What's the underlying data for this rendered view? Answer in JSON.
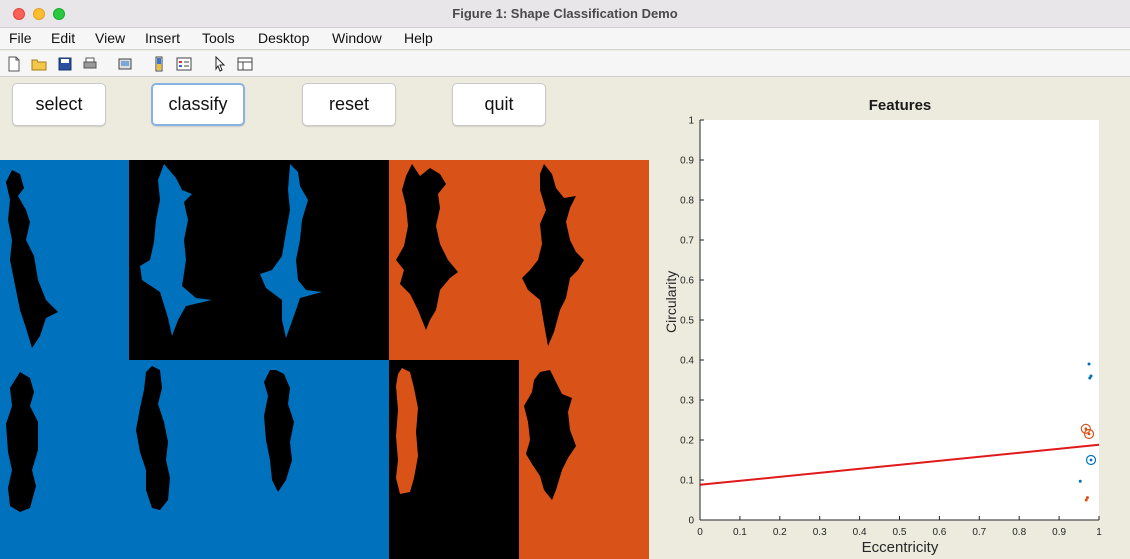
{
  "window": {
    "title": "Figure 1: Shape Classification Demo"
  },
  "menu": [
    "File",
    "Edit",
    "View",
    "Insert",
    "Tools",
    "Desktop",
    "Window",
    "Help"
  ],
  "toolbar_icons": [
    "new-file-icon",
    "open-folder-icon",
    "save-icon",
    "print-icon",
    "export-icon",
    "colorbar-icon",
    "legend-icon",
    "pointer-icon",
    "property-inspector-icon"
  ],
  "buttons": {
    "select": "select",
    "classify": "classify",
    "reset": "reset",
    "quit": "quit"
  },
  "colors": {
    "blue": "#0072bd",
    "orange": "#d95319",
    "black": "#000000",
    "line": "#e0191b"
  },
  "image_grid": {
    "tiles": [
      {
        "row": 1,
        "col": 1,
        "background": "blue",
        "shape": "fish",
        "fill": "black"
      },
      {
        "row": 1,
        "col": 2,
        "background": "black",
        "shape": "fish",
        "fill": "blue"
      },
      {
        "row": 1,
        "col": 3,
        "background": "black",
        "shape": "fish",
        "fill": "blue"
      },
      {
        "row": 1,
        "col": 4,
        "background": "orange",
        "shape": "fish",
        "fill": "black"
      },
      {
        "row": 1,
        "col": 5,
        "background": "orange",
        "shape": "fish",
        "fill": "black"
      },
      {
        "row": 2,
        "col": 1,
        "background": "blue",
        "shape": "fish",
        "fill": "black"
      },
      {
        "row": 2,
        "col": 2,
        "background": "blue",
        "shape": "fish",
        "fill": "black"
      },
      {
        "row": 2,
        "col": 3,
        "background": "blue",
        "shape": "fish",
        "fill": "black"
      },
      {
        "row": 2,
        "col": 4,
        "background": "black",
        "shape": "fish",
        "fill": "orange"
      },
      {
        "row": 2,
        "col": 5,
        "background": "orange",
        "shape": "fish",
        "fill": "black"
      }
    ]
  },
  "chart_data": {
    "type": "scatter",
    "title": "Features",
    "xlabel": "Eccentricity",
    "ylabel": "Circularity",
    "xlim": [
      0,
      1
    ],
    "ylim": [
      0,
      1
    ],
    "xticks": [
      "0",
      "0.1",
      "0.2",
      "0.3",
      "0.4",
      "0.5",
      "0.6",
      "0.7",
      "0.8",
      "0.9",
      "1"
    ],
    "yticks": [
      "0",
      "0.1",
      "0.2",
      "0.3",
      "0.4",
      "0.5",
      "0.6",
      "0.7",
      "0.8",
      "0.9",
      "1"
    ],
    "series": [
      {
        "color": "#0072bd",
        "marker": "dot",
        "points": [
          [
            0.975,
            0.39
          ],
          [
            0.977,
            0.355
          ],
          [
            0.98,
            0.36
          ],
          [
            0.953,
            0.097
          ]
        ]
      },
      {
        "color": "#0072bd",
        "marker": "circle-dot",
        "points": [
          [
            0.98,
            0.15
          ]
        ]
      },
      {
        "color": "#d95319",
        "marker": "dot",
        "points": [
          [
            0.971,
            0.056
          ],
          [
            0.968,
            0.05
          ]
        ]
      },
      {
        "color": "#d95319",
        "marker": "circle-dot",
        "points": [
          [
            0.967,
            0.228
          ],
          [
            0.975,
            0.215
          ]
        ]
      }
    ],
    "decision_line": {
      "color": "#e0191b",
      "points": [
        [
          0,
          0.088
        ],
        [
          1,
          0.188
        ]
      ]
    },
    "grid": false
  }
}
